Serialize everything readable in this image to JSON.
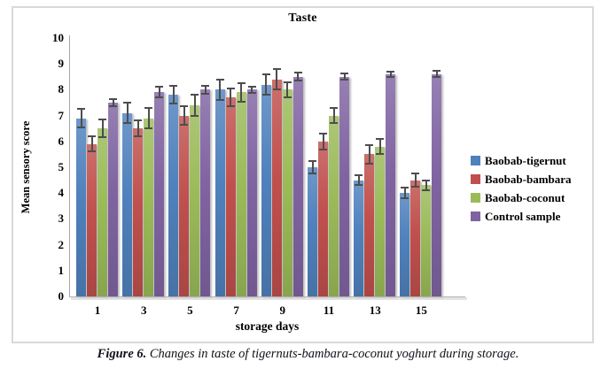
{
  "figure": {
    "caption_prefix": "Figure 6.",
    "caption_text": " Changes in taste of tigernuts-bambara-coconut yoghurt during storage."
  },
  "chart_data": {
    "type": "bar",
    "title": "Taste",
    "xlabel": "storage days",
    "ylabel": "Mean sensory score",
    "ylim": [
      0,
      10
    ],
    "y_ticks": [
      0,
      1,
      2,
      3,
      4,
      5,
      6,
      7,
      8,
      9,
      10
    ],
    "grid": false,
    "legend_position": "right",
    "error_bars": true,
    "categories": [
      "1",
      "3",
      "5",
      "7",
      "9",
      "11",
      "13",
      "15"
    ],
    "series": [
      {
        "name": "Baobab-tigernut",
        "color": "#4F81BD",
        "values": [
          6.9,
          7.1,
          7.8,
          8.0,
          8.2,
          5.0,
          4.5,
          4.0
        ],
        "errors": [
          0.35,
          0.4,
          0.35,
          0.4,
          0.4,
          0.25,
          0.2,
          0.2
        ]
      },
      {
        "name": "Baobab-bambara",
        "color": "#C0504D",
        "values": [
          5.9,
          6.5,
          7.0,
          7.7,
          8.4,
          6.0,
          5.5,
          4.5
        ],
        "errors": [
          0.3,
          0.3,
          0.35,
          0.35,
          0.4,
          0.3,
          0.35,
          0.25
        ]
      },
      {
        "name": "Baobab-coconut",
        "color": "#9BBB59",
        "values": [
          6.5,
          6.9,
          7.4,
          7.9,
          8.0,
          7.0,
          5.8,
          4.3
        ],
        "errors": [
          0.35,
          0.4,
          0.4,
          0.35,
          0.3,
          0.3,
          0.3,
          0.2
        ]
      },
      {
        "name": "Control sample",
        "color": "#8064A2",
        "values": [
          7.5,
          7.9,
          8.0,
          8.0,
          8.5,
          8.5,
          8.6,
          8.6
        ],
        "errors": [
          0.15,
          0.2,
          0.15,
          0.12,
          0.15,
          0.12,
          0.1,
          0.12
        ]
      }
    ]
  },
  "colors": {
    "error_bar": "#4d4d4d",
    "axis_line": "#a6a6a6",
    "frame_border": "#d9d9d9"
  }
}
